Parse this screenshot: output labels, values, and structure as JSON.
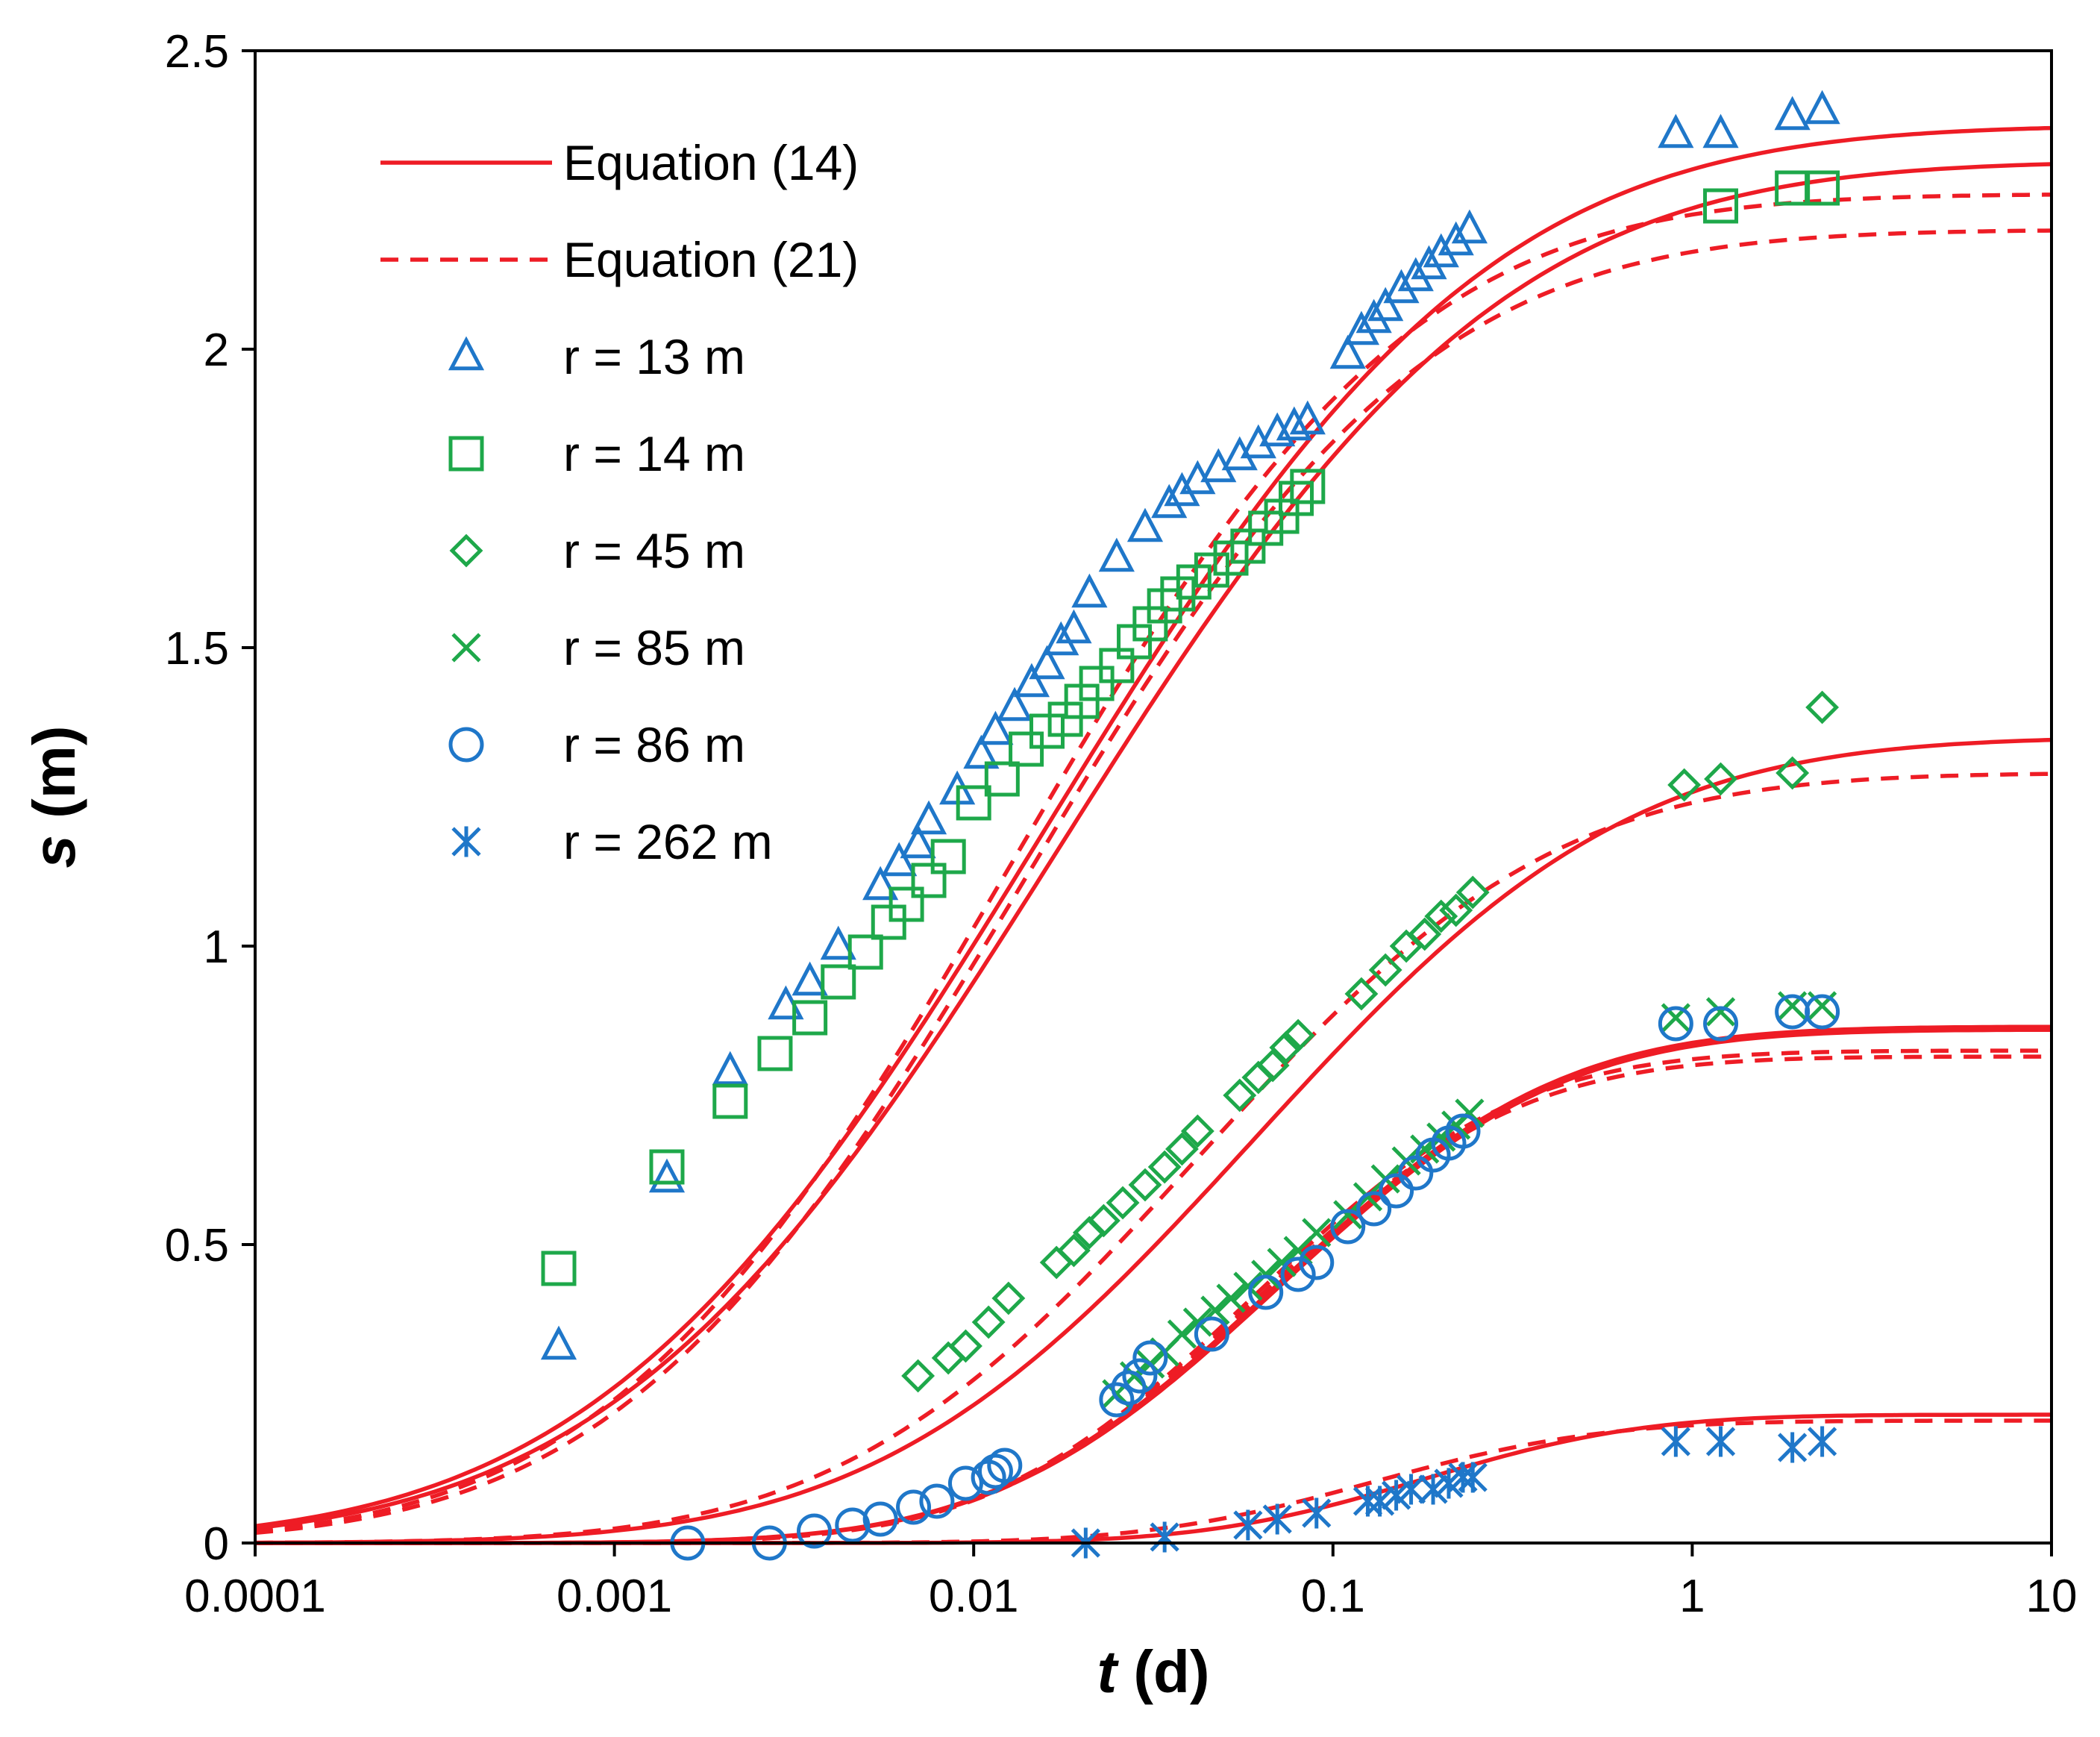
{
  "chart_data": {
    "type": "scatter",
    "x_scale": "log",
    "xlim": [
      0.0001,
      10
    ],
    "ylim": [
      0,
      2.5
    ],
    "x_ticks": [
      0.0001,
      0.001,
      0.01,
      0.1,
      1,
      10
    ],
    "x_tick_labels": [
      "0.0001",
      "0.001",
      "0.01",
      "0.1",
      "1",
      "10"
    ],
    "y_ticks": [
      0,
      0.5,
      1,
      1.5,
      2,
      2.5
    ],
    "y_tick_labels": [
      "0",
      "0.5",
      "1",
      "1.5",
      "2",
      "2.5"
    ],
    "xlabel_var": "t",
    "xlabel_unit": " (d)",
    "ylabel_var": "s",
    "ylabel_unit": " (m)",
    "grid": false,
    "legend_position": "top-left",
    "colors": {
      "red": "#ee1c25",
      "blue": "#1f77c9",
      "green": "#1ea84a"
    },
    "legend": [
      {
        "label": "Equation (14)",
        "style": "solid-line",
        "color": "#ee1c25"
      },
      {
        "label": "Equation (21)",
        "style": "dashed-line",
        "color": "#ee1c25"
      },
      {
        "label": "r = 13 m",
        "marker": "triangle",
        "color": "#1f77c9"
      },
      {
        "label": "r = 14 m",
        "marker": "square",
        "color": "#1ea84a"
      },
      {
        "label": "r = 45 m",
        "marker": "diamond",
        "color": "#1ea84a"
      },
      {
        "label": "r = 85 m",
        "marker": "x",
        "color": "#1ea84a"
      },
      {
        "label": "r = 86 m",
        "marker": "circle",
        "color": "#1f77c9"
      },
      {
        "label": "r = 262 m",
        "marker": "asterisk",
        "color": "#1f77c9"
      }
    ],
    "series": [
      {
        "name": "r = 13 m",
        "marker": "triangle",
        "color": "#1f77c9",
        "x": [
          0.0007,
          0.0014,
          0.0021,
          0.003,
          0.0035,
          0.0042,
          0.0055,
          0.0062,
          0.007,
          0.0075,
          0.009,
          0.0105,
          0.0115,
          0.013,
          0.0145,
          0.016,
          0.0175,
          0.019,
          0.021,
          0.025,
          0.03,
          0.035,
          0.038,
          0.042,
          0.048,
          0.055,
          0.062,
          0.07,
          0.078,
          0.085,
          0.11,
          0.12,
          0.13,
          0.14,
          0.155,
          0.17,
          0.185,
          0.2,
          0.22,
          0.24,
          0.9,
          1.2,
          1.9,
          2.3
        ],
        "y": [
          0.33,
          0.61,
          0.79,
          0.9,
          0.94,
          1.0,
          1.1,
          1.14,
          1.17,
          1.21,
          1.26,
          1.32,
          1.36,
          1.4,
          1.44,
          1.47,
          1.51,
          1.53,
          1.59,
          1.65,
          1.7,
          1.74,
          1.76,
          1.78,
          1.8,
          1.82,
          1.84,
          1.86,
          1.87,
          1.88,
          1.99,
          2.03,
          2.05,
          2.07,
          2.1,
          2.12,
          2.14,
          2.16,
          2.18,
          2.2,
          2.36,
          2.36,
          2.39,
          2.4
        ]
      },
      {
        "name": "r = 14 m",
        "marker": "square",
        "color": "#1ea84a",
        "x": [
          0.0007,
          0.0014,
          0.0021,
          0.0028,
          0.0035,
          0.0042,
          0.005,
          0.0058,
          0.0065,
          0.0075,
          0.0085,
          0.01,
          0.012,
          0.014,
          0.016,
          0.018,
          0.02,
          0.022,
          0.025,
          0.028,
          0.031,
          0.034,
          0.037,
          0.041,
          0.046,
          0.052,
          0.058,
          0.065,
          0.072,
          0.079,
          0.085,
          1.2,
          1.9,
          2.3
        ],
        "y": [
          0.46,
          0.63,
          0.74,
          0.82,
          0.88,
          0.94,
          0.99,
          1.04,
          1.07,
          1.11,
          1.15,
          1.24,
          1.28,
          1.33,
          1.36,
          1.38,
          1.41,
          1.44,
          1.47,
          1.51,
          1.54,
          1.57,
          1.59,
          1.61,
          1.63,
          1.65,
          1.67,
          1.7,
          1.72,
          1.75,
          1.77,
          2.24,
          2.27,
          2.27
        ]
      },
      {
        "name": "r = 45 m",
        "marker": "diamond",
        "color": "#1ea84a",
        "x": [
          0.007,
          0.0085,
          0.0095,
          0.011,
          0.0125,
          0.017,
          0.019,
          0.021,
          0.023,
          0.026,
          0.03,
          0.034,
          0.038,
          0.042,
          0.055,
          0.062,
          0.068,
          0.074,
          0.08,
          0.12,
          0.14,
          0.16,
          0.18,
          0.2,
          0.22,
          0.245,
          0.95,
          1.2,
          1.9,
          2.3
        ],
        "y": [
          0.28,
          0.31,
          0.33,
          0.37,
          0.41,
          0.47,
          0.49,
          0.52,
          0.54,
          0.57,
          0.6,
          0.63,
          0.66,
          0.69,
          0.75,
          0.78,
          0.8,
          0.83,
          0.85,
          0.92,
          0.96,
          1.0,
          1.02,
          1.05,
          1.06,
          1.09,
          1.27,
          1.28,
          1.29,
          1.4
        ]
      },
      {
        "name": "r = 85 m",
        "marker": "x",
        "color": "#1ea84a",
        "x": [
          0.025,
          0.028,
          0.031,
          0.034,
          0.038,
          0.042,
          0.047,
          0.052,
          0.058,
          0.065,
          0.072,
          0.08,
          0.09,
          0.11,
          0.125,
          0.14,
          0.16,
          0.18,
          0.2,
          0.22,
          0.24,
          0.9,
          1.2,
          1.9,
          2.3
        ],
        "y": [
          0.25,
          0.28,
          0.3,
          0.32,
          0.35,
          0.37,
          0.39,
          0.41,
          0.43,
          0.45,
          0.47,
          0.49,
          0.52,
          0.55,
          0.58,
          0.61,
          0.64,
          0.66,
          0.68,
          0.7,
          0.72,
          0.88,
          0.89,
          0.9,
          0.9
        ]
      },
      {
        "name": "r = 86 m",
        "marker": "circle",
        "color": "#1f77c9",
        "x": [
          0.0016,
          0.0027,
          0.0036,
          0.0046,
          0.0055,
          0.0068,
          0.0079,
          0.0095,
          0.011,
          0.0115,
          0.0122,
          0.025,
          0.027,
          0.029,
          0.031,
          0.046,
          0.065,
          0.08,
          0.09,
          0.11,
          0.13,
          0.15,
          0.17,
          0.19,
          0.21,
          0.23,
          0.9,
          1.2,
          1.9,
          2.3
        ],
        "y": [
          0.0,
          0.0,
          0.02,
          0.03,
          0.04,
          0.06,
          0.07,
          0.1,
          0.11,
          0.12,
          0.13,
          0.24,
          0.26,
          0.28,
          0.31,
          0.35,
          0.42,
          0.45,
          0.47,
          0.53,
          0.56,
          0.59,
          0.62,
          0.65,
          0.67,
          0.69,
          0.87,
          0.87,
          0.89,
          0.89
        ]
      },
      {
        "name": "r = 262 m",
        "marker": "asterisk",
        "color": "#1f77c9",
        "x": [
          0.0205,
          0.034,
          0.058,
          0.07,
          0.09,
          0.125,
          0.135,
          0.15,
          0.165,
          0.19,
          0.21,
          0.23,
          0.245,
          0.9,
          1.2,
          1.9,
          2.3
        ],
        "y": [
          0.0,
          0.01,
          0.03,
          0.04,
          0.05,
          0.07,
          0.07,
          0.08,
          0.09,
          0.09,
          0.1,
          0.11,
          0.11,
          0.17,
          0.17,
          0.16,
          0.17
        ]
      }
    ],
    "curves": [
      {
        "equation": "Equation (14)",
        "style": "solid",
        "r": "13 m",
        "x_mid": 0.0155,
        "width": 0.97,
        "max": 2.375
      },
      {
        "equation": "Equation (14)",
        "style": "solid",
        "r": "14 m",
        "x_mid": 0.017,
        "width": 0.97,
        "max": 2.315
      },
      {
        "equation": "Equation (21)",
        "style": "dashed",
        "r": "13 m",
        "x_mid": 0.0125,
        "width": 0.88,
        "max": 2.26
      },
      {
        "equation": "Equation (21)",
        "style": "dashed",
        "r": "14 m",
        "x_mid": 0.0135,
        "width": 0.88,
        "max": 2.2
      },
      {
        "equation": "Equation (14)",
        "style": "solid",
        "r": "45 m",
        "x_mid": 0.06,
        "width": 0.82,
        "max": 1.35
      },
      {
        "equation": "Equation (21)",
        "style": "dashed",
        "r": "45 m",
        "x_mid": 0.042,
        "width": 0.78,
        "max": 1.29
      },
      {
        "equation": "Equation (14)",
        "style": "solid",
        "r": "85 m",
        "x_mid": 0.07,
        "width": 0.62,
        "max": 0.865
      },
      {
        "equation": "Equation (14)",
        "style": "solid",
        "r": "86 m",
        "x_mid": 0.071,
        "width": 0.62,
        "max": 0.86
      },
      {
        "equation": "Equation (21)",
        "style": "dashed",
        "r": "85 m",
        "x_mid": 0.06,
        "width": 0.58,
        "max": 0.825
      },
      {
        "equation": "Equation (21)",
        "style": "dashed",
        "r": "86 m",
        "x_mid": 0.061,
        "width": 0.58,
        "max": 0.815
      },
      {
        "equation": "Equation (14)",
        "style": "solid",
        "r": "262 m",
        "x_mid": 0.18,
        "width": 0.48,
        "max": 0.215
      },
      {
        "equation": "Equation (21)",
        "style": "dashed",
        "r": "262 m",
        "x_mid": 0.13,
        "width": 0.5,
        "max": 0.205
      }
    ]
  }
}
